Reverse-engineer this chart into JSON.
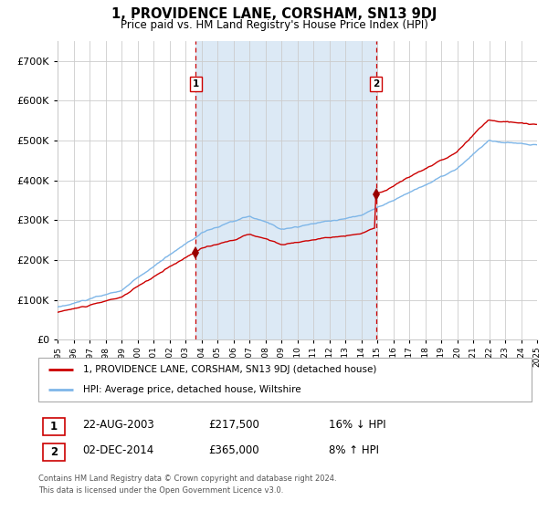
{
  "title": "1, PROVIDENCE LANE, CORSHAM, SN13 9DJ",
  "subtitle": "Price paid vs. HM Land Registry's House Price Index (HPI)",
  "legend_line1": "1, PROVIDENCE LANE, CORSHAM, SN13 9DJ (detached house)",
  "legend_line2": "HPI: Average price, detached house, Wiltshire",
  "transaction1_date": "22-AUG-2003",
  "transaction1_price": 217500,
  "transaction1_label": "16% ↓ HPI",
  "transaction1_year": 2003.64,
  "transaction2_date": "02-DEC-2014",
  "transaction2_price": 365000,
  "transaction2_label": "8% ↑ HPI",
  "transaction2_year": 2014.92,
  "ylim": [
    0,
    750000
  ],
  "yticks": [
    0,
    100000,
    200000,
    300000,
    400000,
    500000,
    600000,
    700000
  ],
  "start_year": 1995,
  "end_year": 2025,
  "hpi_color": "#7EB6E8",
  "price_color": "#CC0000",
  "marker_color": "#990000",
  "bg_color": "#FFFFFF",
  "shade_color": "#DCE9F5",
  "grid_color": "#CCCCCC",
  "footer_text": "Contains HM Land Registry data © Crown copyright and database right 2024.\nThis data is licensed under the Open Government Licence v3.0.",
  "box_color": "#CC0000",
  "legend_border_color": "#AAAAAA"
}
